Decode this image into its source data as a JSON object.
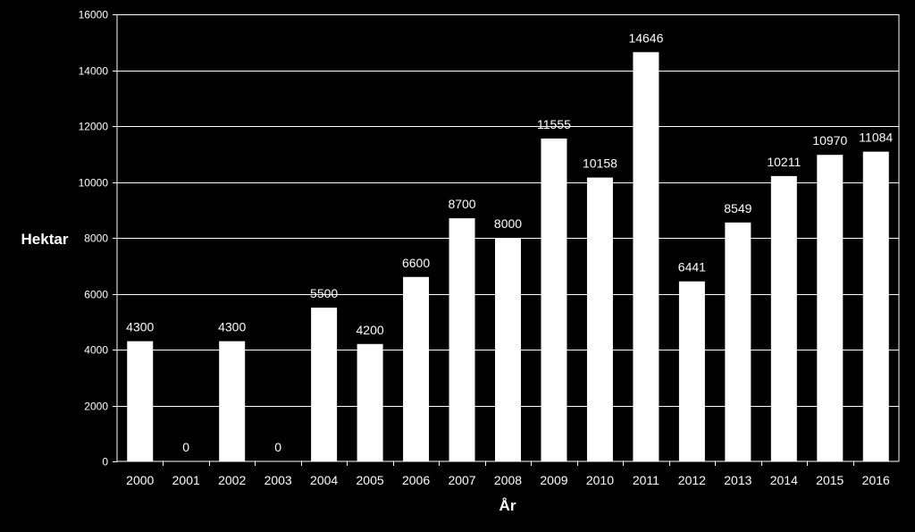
{
  "chart_data": {
    "type": "bar",
    "title": "",
    "xlabel": "År",
    "ylabel": "Hektar",
    "categories": [
      "2000",
      "2001",
      "2002",
      "2003",
      "2004",
      "2005",
      "2006",
      "2007",
      "2008",
      "2009",
      "2010",
      "2011",
      "2012",
      "2013",
      "2014",
      "2015",
      "2016"
    ],
    "values": [
      4300,
      0,
      4300,
      0,
      5500,
      4200,
      6600,
      8700,
      8000,
      11555,
      10158,
      14646,
      6441,
      8549,
      10211,
      10970,
      11084
    ],
    "ylim": [
      0,
      16000
    ],
    "yticks": [
      0,
      2000,
      4000,
      6000,
      8000,
      10000,
      12000,
      14000,
      16000
    ],
    "grid": true,
    "legend": "none",
    "colors": {
      "background": "#000000",
      "bar": "#ffffff",
      "text": "#ffffff",
      "gridline": "#ffffff"
    }
  }
}
